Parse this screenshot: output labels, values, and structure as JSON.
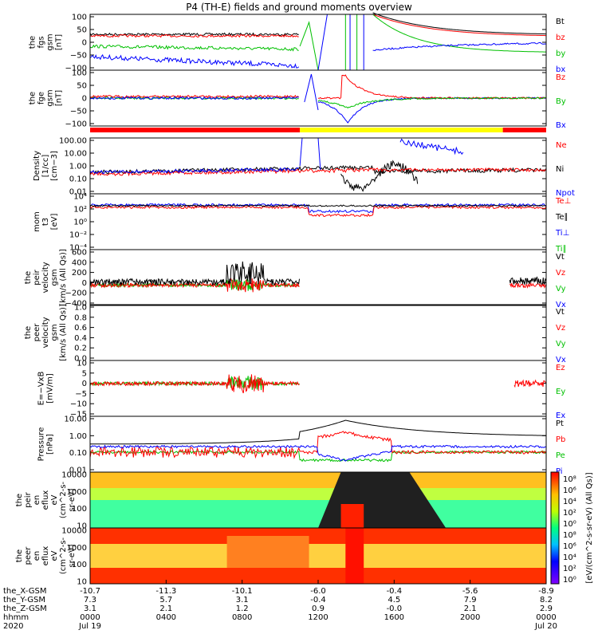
{
  "title": "P4 (TH-E) fields and ground moments overview",
  "colors": {
    "black": "#000000",
    "red": "#ff0000",
    "green": "#00c000",
    "blue": "#0000ff",
    "yellow": "#ffff00"
  },
  "chart_data": {
    "type": "line",
    "panels": [
      {
        "id": "fgs",
        "ylabel": [
          "the",
          "fgs",
          "gsm",
          "[nT]"
        ],
        "yticks": [
          "100",
          "50",
          "0",
          "−50",
          "−100"
        ],
        "yrange": [
          -100,
          100
        ],
        "legend": [
          {
            "name": "Bt",
            "color": "black"
          },
          {
            "name": "bz",
            "color": "red"
          },
          {
            "name": "by",
            "color": "green"
          },
          {
            "name": "bx",
            "color": "blue"
          }
        ]
      },
      {
        "id": "fge",
        "ylabel": [
          "the",
          "fge",
          "gsm",
          "[nT]"
        ],
        "yticks": [
          "100",
          "50",
          "0",
          "−50",
          "−100"
        ],
        "yrange": [
          -125,
          125
        ],
        "legend": [
          {
            "name": "Bz",
            "color": "red"
          },
          {
            "name": "By",
            "color": "green"
          },
          {
            "name": "Bx",
            "color": "blue"
          }
        ]
      },
      {
        "id": "density",
        "ylabel": [
          "Density",
          "[1/cc]",
          "[cm−3]"
        ],
        "yticks": [
          "100.00",
          "10.00",
          "1.00",
          "0.10",
          "0.01"
        ],
        "log": true,
        "legend": [
          {
            "name": "Ne",
            "color": "red"
          },
          {
            "name": "Ni",
            "color": "black"
          },
          {
            "name": "Npot",
            "color": "blue"
          }
        ]
      },
      {
        "id": "temp",
        "ylabel": [
          "mom",
          "t3",
          "[eV]"
        ],
        "yticks": [
          "10⁴",
          "10²",
          "10⁰",
          "10⁻²",
          "10⁻⁴"
        ],
        "log": true,
        "legend": [
          {
            "name": "Te⊥",
            "color": "red"
          },
          {
            "name": "Te∥",
            "color": "black"
          },
          {
            "name": "Ti⊥",
            "color": "blue"
          },
          {
            "name": "Ti∥",
            "color": "green"
          }
        ]
      },
      {
        "id": "vi",
        "ylabel": [
          "the",
          "peir",
          "velocity",
          "gsm",
          "[km/s (All Qs)]"
        ],
        "yticks": [
          "600",
          "400",
          "200",
          "0",
          "−200",
          "−400"
        ],
        "yrange": [
          -400,
          700
        ],
        "legend": [
          {
            "name": "Vt",
            "color": "black"
          },
          {
            "name": "Vz",
            "color": "red"
          },
          {
            "name": "Vy",
            "color": "green"
          },
          {
            "name": "Vx",
            "color": "blue"
          }
        ]
      },
      {
        "id": "ve",
        "ylabel": [
          "the",
          "peer",
          "velocity",
          "gsm",
          "[km/s (All Qs)]"
        ],
        "yticks": [
          "1.0",
          "0.8",
          "0.6",
          "0.4",
          "0.2",
          "0.0"
        ],
        "yrange": [
          0,
          1
        ],
        "legend": [
          {
            "name": "Vt",
            "color": "black"
          },
          {
            "name": "Vz",
            "color": "red"
          },
          {
            "name": "Vy",
            "color": "green"
          },
          {
            "name": "Vx",
            "color": "blue"
          }
        ]
      },
      {
        "id": "efield",
        "ylabel": [
          "E=−VxB",
          "[mV/m]"
        ],
        "yticks": [
          "10",
          "5",
          "0",
          "−5",
          "−10",
          "−15"
        ],
        "yrange": [
          -17,
          12
        ],
        "legend": [
          {
            "name": "Ez",
            "color": "red"
          },
          {
            "name": "Ey",
            "color": "green"
          },
          {
            "name": "Ex",
            "color": "blue"
          }
        ]
      },
      {
        "id": "pressure",
        "ylabel": [
          "Pressure",
          "[nPa]"
        ],
        "yticks": [
          "10.00",
          "1.00",
          "0.10",
          "0.01"
        ],
        "log": true,
        "legend": [
          {
            "name": "Pt",
            "color": "black"
          },
          {
            "name": "Pb",
            "color": "red"
          },
          {
            "name": "Pe",
            "color": "green"
          },
          {
            "name": "Pi",
            "color": "blue"
          }
        ]
      },
      {
        "id": "peir_eflux",
        "ylabel": [
          "the",
          "peir",
          "en",
          "eflux",
          "eV",
          "(cm^2-s-",
          "sr-eV)"
        ],
        "yticks": [
          "10000",
          "1000",
          "100",
          "10"
        ],
        "log": true
      },
      {
        "id": "peer_eflux",
        "ylabel": [
          "the",
          "peer",
          "en",
          "eflux",
          "eV",
          "(cm^2-s-",
          "sr-eV)"
        ],
        "yticks": [
          "10000",
          "1000",
          "100",
          "10"
        ],
        "log": true
      }
    ],
    "colorbar": {
      "label": "[eV/(cm^2-s-sr-eV) (All Qs)]",
      "ticks_upper": [
        "10⁸",
        "10⁶",
        "10⁴",
        "10²",
        "10⁰"
      ],
      "ticks_lower": [
        "10⁸",
        "10⁶",
        "10⁴",
        "10²",
        "10⁰"
      ]
    },
    "xaxis": {
      "row_labels": [
        "the_X-GSM",
        "the_Y-GSM",
        "the_Z-GSM",
        "hhmm",
        "2020"
      ],
      "ticks": [
        {
          "x": "-10.7",
          "y": "7.3",
          "z": "3.1",
          "hhmm": "0000",
          "date": "Jul 19"
        },
        {
          "x": "-11.3",
          "y": "5.7",
          "z": "2.1",
          "hhmm": "0400",
          "date": ""
        },
        {
          "x": "-10.1",
          "y": "3.1",
          "z": "1.2",
          "hhmm": "0800",
          "date": ""
        },
        {
          "x": "-6.0",
          "y": "-0.4",
          "z": "0.9",
          "hhmm": "1200",
          "date": ""
        },
        {
          "x": "-0.4",
          "y": "4.5",
          "z": "-0.0",
          "hhmm": "1600",
          "date": ""
        },
        {
          "x": "-5.6",
          "y": "7.9",
          "z": "2.1",
          "hhmm": "2000",
          "date": ""
        },
        {
          "x": "-8.9",
          "y": "8.2",
          "z": "2.9",
          "hhmm": "0000",
          "date": "Jul 20"
        }
      ]
    }
  }
}
